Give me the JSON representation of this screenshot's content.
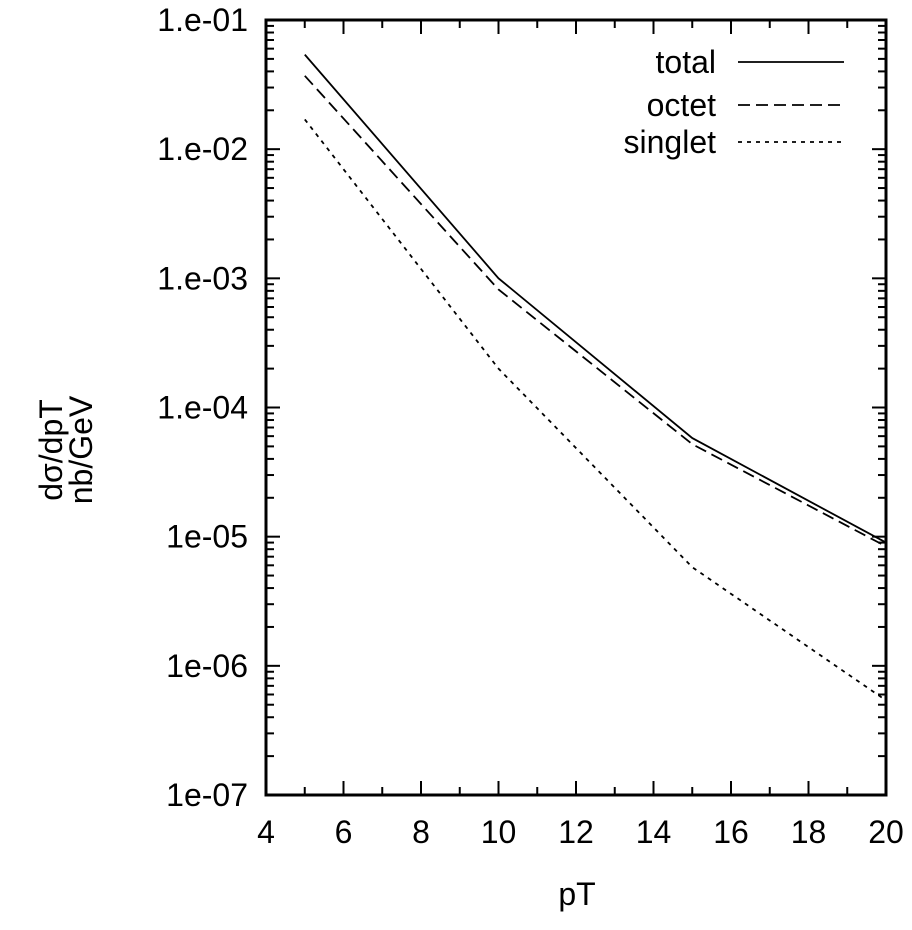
{
  "chart_data": {
    "type": "line",
    "xlabel": "pT",
    "ylabel_lines": [
      "dσ/dpT",
      "nb/GeV"
    ],
    "xlim": [
      4,
      20
    ],
    "ylim": [
      1e-07,
      0.1
    ],
    "yscale": "log",
    "legend_placement": "top-right",
    "xticks": [
      4,
      6,
      8,
      10,
      12,
      14,
      16,
      18,
      20
    ],
    "xtick_labels": [
      "4",
      "6",
      "8",
      "10",
      "12",
      "14",
      "16",
      "18",
      "20"
    ],
    "yticks": [
      1e-07,
      1e-06,
      1e-05,
      0.0001,
      0.001,
      0.01,
      0.1
    ],
    "ytick_labels": [
      "1e-07",
      "1e-06",
      "1e-05",
      "1.e-04",
      "1.e-03",
      "1.e-02",
      "1.e-01"
    ],
    "x": [
      5,
      10,
      15,
      20
    ],
    "series": [
      {
        "name": "total",
        "dash": "solid",
        "values": [
          0.054,
          0.001,
          5.8e-05,
          9e-06
        ]
      },
      {
        "name": "octet",
        "dash": "dashed",
        "values": [
          0.037,
          0.00082,
          5.2e-05,
          8.4e-06
        ]
      },
      {
        "name": "singlet",
        "dash": "dotted",
        "values": [
          0.017,
          0.0002,
          5.8e-06,
          5.4e-07
        ]
      }
    ]
  }
}
